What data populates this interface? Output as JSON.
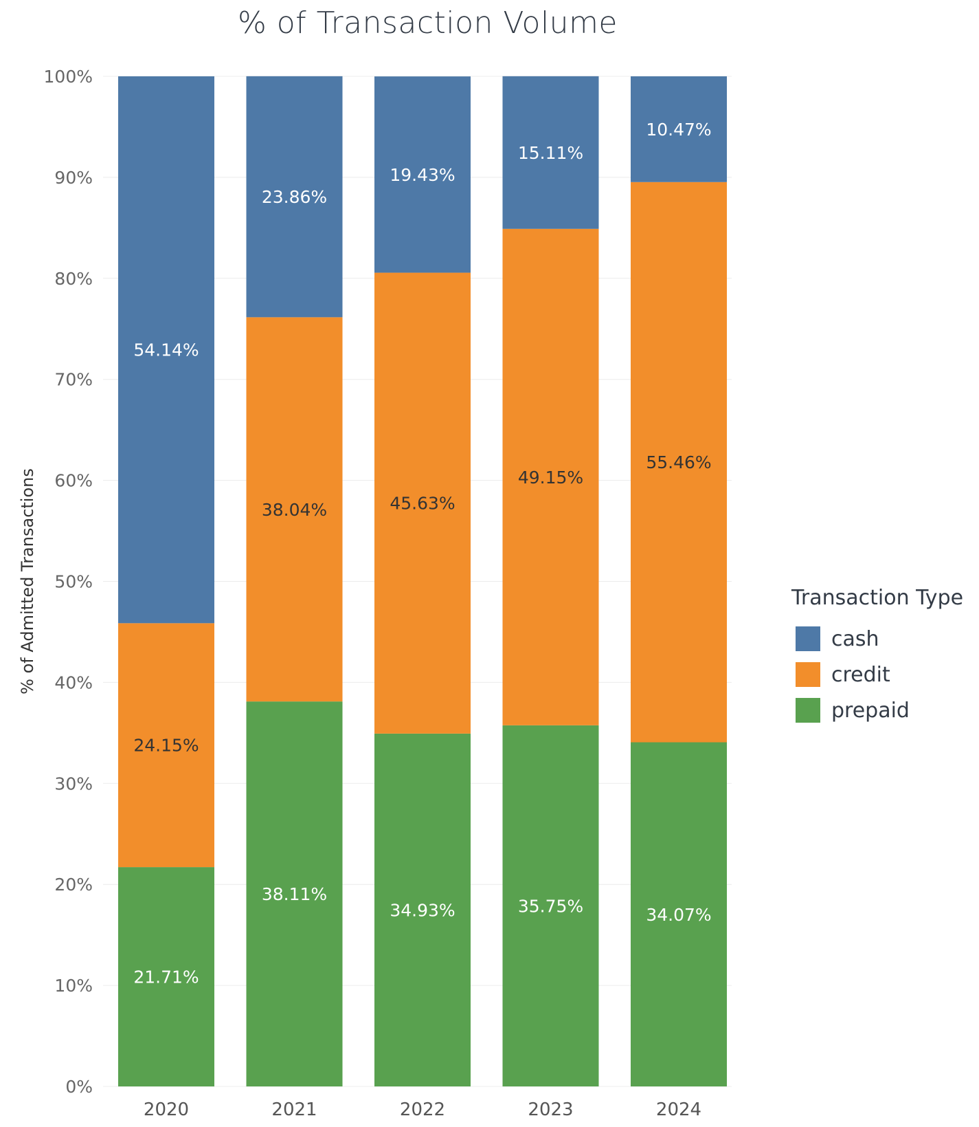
{
  "chart_data": {
    "type": "bar",
    "stacked": true,
    "title": "% of Transaction Volume",
    "xlabel": "",
    "ylabel": "% of Admitted Transactions",
    "ylim": [
      0,
      100
    ],
    "categories": [
      "2020",
      "2021",
      "2022",
      "2023",
      "2024"
    ],
    "yticks": [
      "0%",
      "10%",
      "20%",
      "30%",
      "40%",
      "50%",
      "60%",
      "70%",
      "80%",
      "90%",
      "100%"
    ],
    "series": [
      {
        "name": "prepaid",
        "color": "#59a14f",
        "label_color": "#ffffff",
        "values": [
          21.71,
          38.11,
          34.93,
          35.75,
          34.07
        ],
        "labels": [
          "21.71%",
          "38.11%",
          "34.93%",
          "35.75%",
          "34.07%"
        ]
      },
      {
        "name": "credit",
        "color": "#f28e2b",
        "label_color": "#333333",
        "values": [
          24.15,
          38.04,
          45.63,
          49.15,
          55.46
        ],
        "labels": [
          "24.15%",
          "38.04%",
          "45.63%",
          "49.15%",
          "55.46%"
        ]
      },
      {
        "name": "cash",
        "color": "#4e79a7",
        "label_color": "#ffffff",
        "values": [
          54.14,
          23.86,
          19.43,
          15.11,
          10.47
        ],
        "labels": [
          "54.14%",
          "23.86%",
          "19.43%",
          "15.11%",
          "10.47%"
        ]
      }
    ],
    "legend": {
      "title": "Transaction Type",
      "placement": "right",
      "items": [
        {
          "name": "cash",
          "color": "#4e79a7"
        },
        {
          "name": "credit",
          "color": "#f28e2b"
        },
        {
          "name": "prepaid",
          "color": "#59a14f"
        }
      ]
    },
    "grid": true
  }
}
